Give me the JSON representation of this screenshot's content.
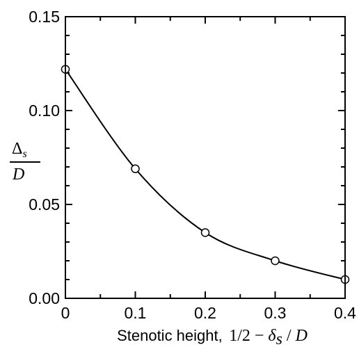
{
  "chart_data": {
    "type": "line",
    "title": "",
    "xlabel": {
      "text": "Stenotic height,",
      "math": {
        "prefix": "1/2 − ",
        "symbol": "δ",
        "subscript": "s",
        "suffix": " / ",
        "denominator": "D"
      }
    },
    "ylabel": {
      "numerator_symbol": "Δ",
      "numerator_subscript": "s",
      "denominator": "D"
    },
    "xlim": [
      0,
      0.4
    ],
    "ylim": [
      0,
      0.15
    ],
    "xticks": [
      "0",
      "0.1",
      "0.2",
      "0.3",
      "0.4"
    ],
    "yticks": [
      "0.00",
      "0.05",
      "0.10",
      "0.15"
    ],
    "grid": false,
    "series": [
      {
        "marker": "open-circle",
        "x": [
          0,
          0.1,
          0.2,
          0.3,
          0.4
        ],
        "y": [
          0.122,
          0.069,
          0.035,
          0.02,
          0.01
        ]
      }
    ],
    "line_color": "#000000"
  }
}
